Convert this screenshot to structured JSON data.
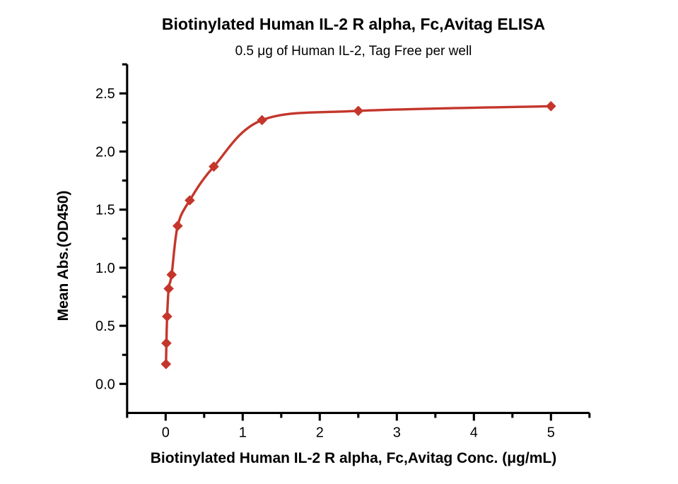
{
  "page": {
    "background_color": "#ffffff",
    "text_color": "#000000"
  },
  "chart_data": {
    "type": "scatter",
    "title": "Biotinylated Human IL-2 R alpha, Fc,Avitag ELISA",
    "subtitle": "0.5 μg of Human IL-2, Tag Free per well",
    "xlabel": "Biotinylated Human IL-2 R alpha, Fc,Avitag Conc. (μg/mL)",
    "ylabel": "Mean Abs.(OD450)",
    "grid": false,
    "legend": false,
    "axis_color": "#000000",
    "curve_style": "smooth-4pl-fit",
    "marker_shape": "diamond",
    "series": [
      {
        "name": "Biotinylated Human IL-2 R alpha, Fc,Avitag",
        "color": "#C4362B",
        "points": [
          {
            "x": 0.0049,
            "y": 0.17
          },
          {
            "x": 0.0098,
            "y": 0.35
          },
          {
            "x": 0.0195,
            "y": 0.58
          },
          {
            "x": 0.0391,
            "y": 0.82
          },
          {
            "x": 0.0781,
            "y": 0.94
          },
          {
            "x": 0.1563,
            "y": 1.36
          },
          {
            "x": 0.3125,
            "y": 1.58
          },
          {
            "x": 0.625,
            "y": 1.87
          },
          {
            "x": 1.25,
            "y": 2.27
          },
          {
            "x": 2.5,
            "y": 2.35
          },
          {
            "x": 5,
            "y": 2.39
          }
        ]
      }
    ],
    "x_axis": {
      "min": -0.5,
      "max": 5.5,
      "major_ticks": [
        0,
        1,
        2,
        3,
        4,
        5
      ],
      "tick_labels": [
        "0",
        "1",
        "2",
        "3",
        "4",
        "5"
      ],
      "minor_step": 0.5
    },
    "y_axis": {
      "min": -0.25,
      "max": 2.75,
      "major_ticks": [
        0.0,
        0.5,
        1.0,
        1.5,
        2.0,
        2.5
      ],
      "tick_labels": [
        "0.0",
        "0.5",
        "1.0",
        "1.5",
        "2.0",
        "2.5"
      ],
      "minor_step": 0.25
    }
  }
}
